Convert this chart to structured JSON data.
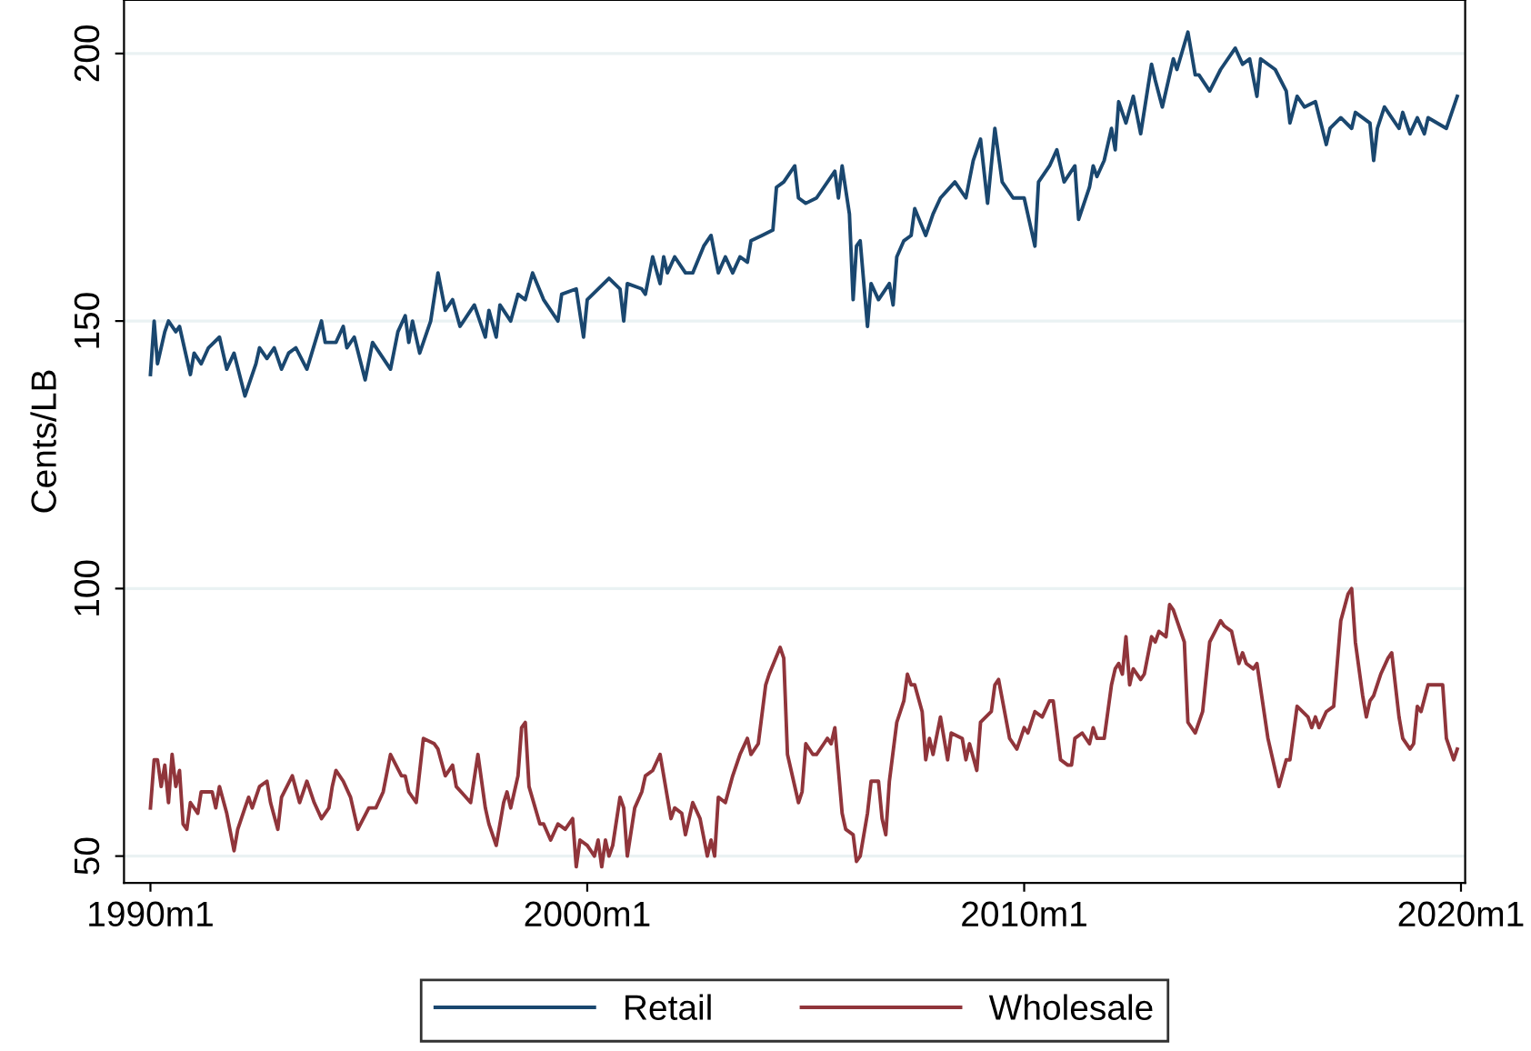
{
  "chart_data": {
    "type": "line",
    "ylabel": "Cents/LB",
    "xlim": [
      "1989-05-25",
      "2020-02-05"
    ],
    "ylim": [
      45,
      210
    ],
    "xticks": [
      {
        "value": "1990-01",
        "label": "1990m1"
      },
      {
        "value": "2000-01",
        "label": "2000m1"
      },
      {
        "value": "2010-01",
        "label": "2010m1"
      },
      {
        "value": "2020-01",
        "label": "2020m1"
      }
    ],
    "yticks": [
      50,
      100,
      150,
      200
    ],
    "grid": "y",
    "legend": "bottom",
    "series": [
      {
        "name": "Retail",
        "color": "#1a476f",
        "x": [
          "1990-01",
          "1990-02",
          "1990-03",
          "1990-05",
          "1990-06",
          "1990-08",
          "1990-09",
          "1990-12",
          "1991-01",
          "1991-03",
          "1991-05",
          "1991-08",
          "1991-10",
          "1991-12",
          "1992-03",
          "1992-04",
          "1992-06",
          "1992-07",
          "1992-09",
          "1992-11",
          "1993-01",
          "1993-03",
          "1993-05",
          "1993-08",
          "1993-12",
          "1994-01",
          "1994-04",
          "1994-06",
          "1994-07",
          "1994-09",
          "1994-12",
          "1995-02",
          "1995-07",
          "1995-09",
          "1995-11",
          "1995-12",
          "1996-01",
          "1996-03",
          "1996-06",
          "1996-08",
          "1996-10",
          "1996-12",
          "1997-02",
          "1997-06",
          "1997-09",
          "1997-10",
          "1997-12",
          "1998-01",
          "1998-04",
          "1998-06",
          "1998-08",
          "1998-10",
          "1999-01",
          "1999-05",
          "1999-06",
          "1999-10",
          "1999-12",
          "2000-01",
          "2000-04",
          "2000-07",
          "2000-10",
          "2000-11",
          "2000-12",
          "2001-04",
          "2001-05",
          "2001-07",
          "2001-09",
          "2001-10",
          "2001-11",
          "2002-01",
          "2002-04",
          "2002-06",
          "2002-09",
          "2002-11",
          "2003-01",
          "2003-03",
          "2003-05",
          "2003-07",
          "2003-09",
          "2003-10",
          "2004-01",
          "2004-04",
          "2004-05",
          "2004-07",
          "2004-10",
          "2004-11",
          "2005-01",
          "2005-04",
          "2005-06",
          "2005-09",
          "2005-10",
          "2005-11",
          "2006-01",
          "2006-02",
          "2006-03",
          "2006-04",
          "2006-06",
          "2006-07",
          "2006-09",
          "2006-12",
          "2007-01",
          "2007-02",
          "2007-04",
          "2007-06",
          "2007-07",
          "2007-10",
          "2007-12",
          "2008-02",
          "2008-06",
          "2008-09",
          "2008-11",
          "2009-01",
          "2009-03",
          "2009-05",
          "2009-07",
          "2009-10",
          "2010-01",
          "2010-04",
          "2010-05",
          "2010-08",
          "2010-10",
          "2010-12",
          "2011-03",
          "2011-04",
          "2011-07",
          "2011-08",
          "2011-09",
          "2011-11",
          "2012-01",
          "2012-02",
          "2012-03",
          "2012-05",
          "2012-07",
          "2012-09",
          "2012-12",
          "2013-01",
          "2013-03",
          "2013-06",
          "2013-07",
          "2013-10",
          "2013-12",
          "2014-01",
          "2014-04",
          "2014-07",
          "2014-11",
          "2015-01",
          "2015-03",
          "2015-05",
          "2015-06",
          "2015-10",
          "2016-01",
          "2016-02",
          "2016-04",
          "2016-06",
          "2016-09",
          "2016-12",
          "2017-01",
          "2017-04",
          "2017-07",
          "2017-08",
          "2017-12",
          "2018-01",
          "2018-02",
          "2018-04",
          "2018-08",
          "2018-09",
          "2018-11",
          "2019-01",
          "2019-03",
          "2019-04",
          "2019-09",
          "2019-12"
        ],
        "values": [
          140,
          150,
          142,
          148,
          150,
          148,
          149,
          140,
          144,
          142,
          145,
          147,
          141,
          144,
          136,
          138,
          142,
          145,
          143,
          145,
          141,
          144,
          145,
          141,
          150,
          146,
          146,
          149,
          145,
          147,
          139,
          146,
          141,
          148,
          151,
          146,
          150,
          144,
          150,
          159,
          152,
          154,
          149,
          153,
          147,
          152,
          147,
          153,
          150,
          155,
          154,
          159,
          154,
          150,
          155,
          156,
          147,
          154,
          156,
          158,
          156,
          150,
          157,
          156,
          155,
          162,
          157,
          162,
          159,
          162,
          159,
          159,
          164,
          166,
          159,
          162,
          159,
          162,
          161,
          165,
          166,
          167,
          175,
          176,
          179,
          173,
          172,
          173,
          175,
          178,
          173,
          179,
          170,
          154,
          164,
          165,
          149,
          157,
          154,
          157,
          153,
          162,
          165,
          166,
          171,
          166,
          170,
          173,
          176,
          173,
          180,
          184,
          172,
          186,
          176,
          173,
          173,
          164,
          176,
          179,
          182,
          176,
          179,
          169,
          175,
          179,
          177,
          180,
          186,
          182,
          191,
          187,
          192,
          185,
          198,
          195,
          190,
          199,
          197,
          204,
          196,
          196,
          193,
          197,
          201,
          198,
          199,
          192,
          199,
          197,
          193,
          187,
          192,
          190,
          191,
          183,
          186,
          188,
          186,
          189,
          187,
          180,
          186,
          190,
          186,
          189,
          185,
          188,
          185,
          188,
          186,
          192
        ]
      },
      {
        "name": "Wholesale",
        "color": "#90353b",
        "x": [
          "1990-01",
          "1990-02",
          "1990-03",
          "1990-04",
          "1990-05",
          "1990-06",
          "1990-07",
          "1990-08",
          "1990-09",
          "1990-10",
          "1990-11",
          "1990-12",
          "1991-02",
          "1991-03",
          "1991-06",
          "1991-07",
          "1991-08",
          "1991-10",
          "1991-12",
          "1992-01",
          "1992-03",
          "1992-04",
          "1992-05",
          "1992-07",
          "1992-09",
          "1992-10",
          "1992-12",
          "1993-01",
          "1993-04",
          "1993-06",
          "1993-08",
          "1993-10",
          "1993-12",
          "1994-02",
          "1994-03",
          "1994-04",
          "1994-06",
          "1994-08",
          "1994-10",
          "1995-01",
          "1995-03",
          "1995-05",
          "1995-07",
          "1995-10",
          "1995-11",
          "1995-12",
          "1996-02",
          "1996-04",
          "1996-07",
          "1996-08",
          "1996-10",
          "1996-12",
          "1997-01",
          "1997-05",
          "1997-07",
          "1997-09",
          "1997-10",
          "1997-12",
          "1998-02",
          "1998-03",
          "1998-04",
          "1998-06",
          "1998-07",
          "1998-08",
          "1998-09",
          "1998-12",
          "1999-01",
          "1999-03",
          "1999-05",
          "1999-07",
          "1999-09",
          "1999-10",
          "1999-11",
          "2000-01",
          "2000-03",
          "2000-04",
          "2000-05",
          "2000-06",
          "2000-07",
          "2000-08",
          "2000-10",
          "2000-11",
          "2000-12",
          "2001-02",
          "2001-04",
          "2001-05",
          "2001-07",
          "2001-09",
          "2001-12",
          "2002-01",
          "2002-03",
          "2002-04",
          "2002-06",
          "2002-08",
          "2002-10",
          "2002-11",
          "2002-12",
          "2003-01",
          "2003-03",
          "2003-05",
          "2003-07",
          "2003-09",
          "2003-10",
          "2003-12",
          "2004-02",
          "2004-03",
          "2004-06",
          "2004-07",
          "2004-08",
          "2004-11",
          "2004-12",
          "2005-01",
          "2005-03",
          "2005-04",
          "2005-06",
          "2005-07",
          "2005-08",
          "2005-09",
          "2005-11",
          "2005-12",
          "2006-02",
          "2006-03",
          "2006-04",
          "2006-06",
          "2006-07",
          "2006-09",
          "2006-10",
          "2006-11",
          "2006-12",
          "2007-02",
          "2007-04",
          "2007-05",
          "2007-06",
          "2007-07",
          "2007-09",
          "2007-10",
          "2007-11",
          "2007-12",
          "2008-02",
          "2008-04",
          "2008-05",
          "2008-08",
          "2008-09",
          "2008-10",
          "2008-12",
          "2009-01",
          "2009-04",
          "2009-05",
          "2009-06",
          "2009-09",
          "2009-11",
          "2010-01",
          "2010-02",
          "2010-04",
          "2010-06",
          "2010-08",
          "2010-09",
          "2010-11",
          "2011-01",
          "2011-02",
          "2011-03",
          "2011-05",
          "2011-07",
          "2011-08",
          "2011-09",
          "2011-11",
          "2012-01",
          "2012-02",
          "2012-03",
          "2012-04",
          "2012-05",
          "2012-06",
          "2012-07",
          "2012-09",
          "2012-10",
          "2012-12",
          "2013-01",
          "2013-02",
          "2013-04",
          "2013-05",
          "2013-06",
          "2013-09",
          "2013-10",
          "2013-12",
          "2014-02",
          "2014-04",
          "2014-07",
          "2014-08",
          "2014-10",
          "2014-12",
          "2015-01",
          "2015-02",
          "2015-04",
          "2015-05",
          "2015-08",
          "2015-11",
          "2016-01",
          "2016-02",
          "2016-04",
          "2016-07",
          "2016-08",
          "2016-09",
          "2016-10",
          "2016-12",
          "2017-02",
          "2017-04",
          "2017-06",
          "2017-07",
          "2017-08",
          "2017-10",
          "2017-11",
          "2017-12",
          "2018-01",
          "2018-03",
          "2018-05",
          "2018-06",
          "2018-08",
          "2018-09",
          "2018-11",
          "2018-12",
          "2019-01",
          "2019-02",
          "2019-04",
          "2019-07",
          "2019-08",
          "2019-09",
          "2019-11",
          "2019-12"
        ],
        "values": [
          59,
          68,
          68,
          63,
          67,
          60,
          69,
          63,
          66,
          56,
          55,
          60,
          58,
          62,
          62,
          59,
          63,
          58,
          51,
          55,
          59,
          61,
          59,
          63,
          64,
          60,
          55,
          61,
          65,
          60,
          64,
          60,
          57,
          59,
          63,
          66,
          64,
          61,
          55,
          59,
          59,
          62,
          69,
          65,
          65,
          62,
          60,
          72,
          71,
          70,
          65,
          67,
          63,
          60,
          69,
          59,
          56,
          52,
          60,
          62,
          59,
          65,
          74,
          75,
          63,
          56,
          56,
          53,
          56,
          55,
          57,
          48,
          53,
          52,
          50,
          53,
          48,
          53,
          50,
          52,
          61,
          59,
          50,
          59,
          62,
          65,
          66,
          69,
          57,
          59,
          58,
          54,
          60,
          57,
          50,
          53,
          50,
          61,
          60,
          65,
          69,
          72,
          69,
          71,
          82,
          84,
          89,
          87,
          69,
          60,
          62,
          71,
          69,
          69,
          71,
          72,
          71,
          74,
          58,
          55,
          54,
          49,
          50,
          58,
          64,
          64,
          57,
          54,
          64,
          75,
          79,
          84,
          82,
          82,
          77,
          68,
          72,
          69,
          76,
          68,
          73,
          72,
          68,
          71,
          66,
          75,
          77,
          82,
          83,
          72,
          70,
          74,
          73,
          77,
          76,
          79,
          79,
          68,
          67,
          67,
          72,
          73,
          71,
          74,
          72,
          72,
          82,
          85,
          86,
          84,
          91,
          82,
          85,
          83,
          84,
          91,
          90,
          92,
          91,
          97,
          96,
          90,
          75,
          73,
          77,
          90,
          94,
          93,
          92,
          86,
          88,
          86,
          85,
          86,
          72,
          63,
          68,
          68,
          78,
          76,
          74,
          76,
          74,
          77,
          78,
          94,
          99,
          100,
          90,
          80,
          76,
          79,
          80,
          84,
          87,
          88,
          76,
          72,
          70,
          71,
          78,
          77,
          82,
          82,
          82,
          72,
          68,
          70
        ]
      }
    ]
  }
}
